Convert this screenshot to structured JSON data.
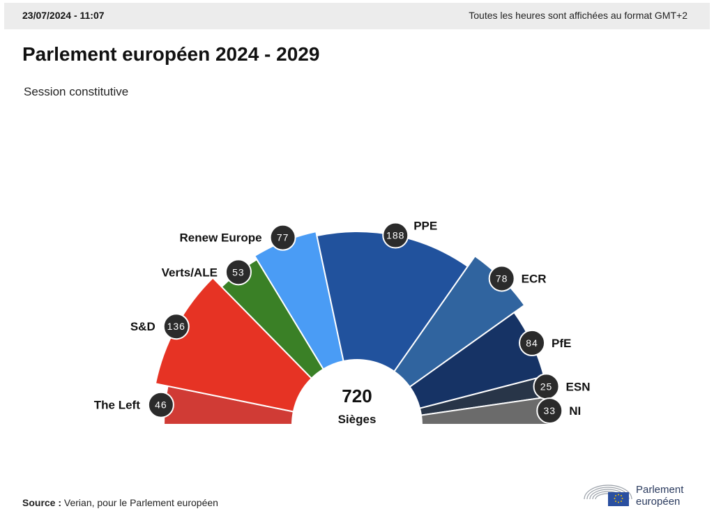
{
  "header": {
    "datetime": "23/07/2024 - 11:07",
    "timezone_note": "Toutes les heures sont affichées au format GMT+2"
  },
  "title": "Parlement européen 2024 - 2029",
  "subtitle": "Session constitutive",
  "source": {
    "label": "Source :",
    "text": "Verian, pour le Parlement européen"
  },
  "logo": {
    "line1": "Parlement",
    "line2": "européen"
  },
  "chart_data": {
    "type": "pie",
    "shape": "hemicycle",
    "total": 720,
    "total_label": "Sièges",
    "slices": [
      {
        "label": "The Left",
        "value": 46,
        "color": "#d03b35"
      },
      {
        "label": "S&D",
        "value": 136,
        "color": "#e63324"
      },
      {
        "label": "Verts/ALE",
        "value": 53,
        "color": "#3a8026"
      },
      {
        "label": "Renew Europe",
        "value": 77,
        "color": "#4a9cf5"
      },
      {
        "label": "PPE",
        "value": 188,
        "color": "#21529d"
      },
      {
        "label": "ECR",
        "value": 78,
        "color": "#30649f"
      },
      {
        "label": "PfE",
        "value": 84,
        "color": "#163365"
      },
      {
        "label": "ESN",
        "value": 25,
        "color": "#283548"
      },
      {
        "label": "NI",
        "value": 33,
        "color": "#6b6b6b"
      }
    ]
  }
}
